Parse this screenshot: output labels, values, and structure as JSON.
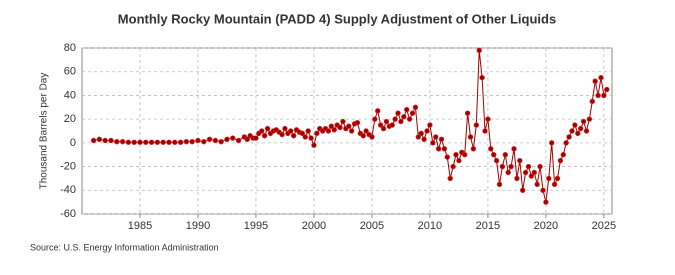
{
  "chart_data": {
    "type": "line",
    "title": "Monthly Rocky Mountain (PADD 4) Supply Adjustment of Other Liquids",
    "y_label": "Thousand Barrels per Day",
    "source": "Source: U.S. Energy Information Administration",
    "xlim": [
      1980,
      2025.7
    ],
    "xticks": [
      1985,
      1990,
      1995,
      2000,
      2005,
      2010,
      2015,
      2020,
      2025
    ],
    "ylim": [
      -60,
      80
    ],
    "yticks": [
      -60,
      -40,
      -20,
      0,
      20,
      40,
      60,
      80
    ],
    "grid": true,
    "x": [
      1981,
      1981.5,
      1982,
      1982.5,
      1983,
      1983.5,
      1984,
      1984.5,
      1985,
      1985.5,
      1986,
      1986.5,
      1987,
      1987.5,
      1988,
      1988.5,
      1989,
      1989.5,
      1990,
      1990.5,
      1991,
      1991.5,
      1992,
      1992.5,
      1993,
      1993.5,
      1994,
      1994.25,
      1994.5,
      1994.75,
      1995,
      1995.25,
      1995.5,
      1995.75,
      1996,
      1996.25,
      1996.5,
      1996.75,
      1997,
      1997.25,
      1997.5,
      1997.75,
      1998,
      1998.25,
      1998.5,
      1998.75,
      1999,
      1999.25,
      1999.5,
      1999.75,
      2000,
      2000.25,
      2000.5,
      2000.75,
      2001,
      2001.25,
      2001.5,
      2001.75,
      2002,
      2002.25,
      2002.5,
      2002.75,
      2003,
      2003.25,
      2003.5,
      2003.75,
      2004,
      2004.25,
      2004.5,
      2004.75,
      2005,
      2005.25,
      2005.5,
      2005.75,
      2006,
      2006.25,
      2006.5,
      2006.75,
      2007,
      2007.25,
      2007.5,
      2007.75,
      2008,
      2008.25,
      2008.5,
      2008.75,
      2009,
      2009.25,
      2009.5,
      2009.75,
      2010,
      2010.25,
      2010.5,
      2010.75,
      2011,
      2011.25,
      2011.5,
      2011.75,
      2012,
      2012.25,
      2012.5,
      2012.75,
      2013,
      2013.25,
      2013.5,
      2013.75,
      2014,
      2014.25,
      2014.5,
      2014.75,
      2015,
      2015.25,
      2015.5,
      2015.75,
      2016,
      2016.25,
      2016.5,
      2016.75,
      2017,
      2017.25,
      2017.5,
      2017.75,
      2018,
      2018.25,
      2018.5,
      2018.75,
      2019,
      2019.25,
      2019.5,
      2019.75,
      2020,
      2020.25,
      2020.5,
      2020.75,
      2021,
      2021.25,
      2021.5,
      2021.75,
      2022,
      2022.25,
      2022.5,
      2022.75,
      2023,
      2023.25,
      2023.5,
      2023.75,
      2024,
      2024.25,
      2024.5,
      2024.75,
      2025,
      2025.25
    ],
    "series": [
      {
        "color": "#a00000",
        "values": [
          2,
          3,
          2,
          2,
          1,
          1,
          0.5,
          0.5,
          0.5,
          0.5,
          0.5,
          0.5,
          0.5,
          0.5,
          0.5,
          0.5,
          1,
          1,
          2,
          1,
          3,
          2,
          1,
          3,
          4,
          2,
          5,
          3,
          6,
          4,
          4,
          8,
          10,
          6,
          12,
          8,
          10,
          11,
          9,
          7,
          12,
          8,
          10,
          6,
          11,
          9,
          8,
          5,
          10,
          4,
          -2,
          8,
          12,
          10,
          12,
          10,
          14,
          11,
          15,
          13,
          18,
          12,
          14,
          10,
          16,
          17,
          8,
          6,
          10,
          7,
          5,
          20,
          27,
          15,
          12,
          18,
          14,
          15,
          20,
          25,
          18,
          22,
          28,
          20,
          25,
          30,
          5,
          8,
          3,
          10,
          15,
          0,
          5,
          -5,
          3,
          -5,
          -12,
          -30,
          -20,
          -10,
          -15,
          -8,
          -10,
          25,
          5,
          -5,
          15,
          78,
          55,
          10,
          20,
          -5,
          -10,
          -15,
          -35,
          -20,
          -10,
          -25,
          -20,
          -5,
          -30,
          -15,
          -40,
          -25,
          -20,
          -28,
          -25,
          -35,
          -20,
          -40,
          -50,
          -30,
          0,
          -35,
          -30,
          -15,
          -10,
          0,
          5,
          10,
          15,
          8,
          12,
          18,
          10,
          20,
          35,
          52,
          40,
          55,
          40,
          45
        ]
      }
    ]
  }
}
